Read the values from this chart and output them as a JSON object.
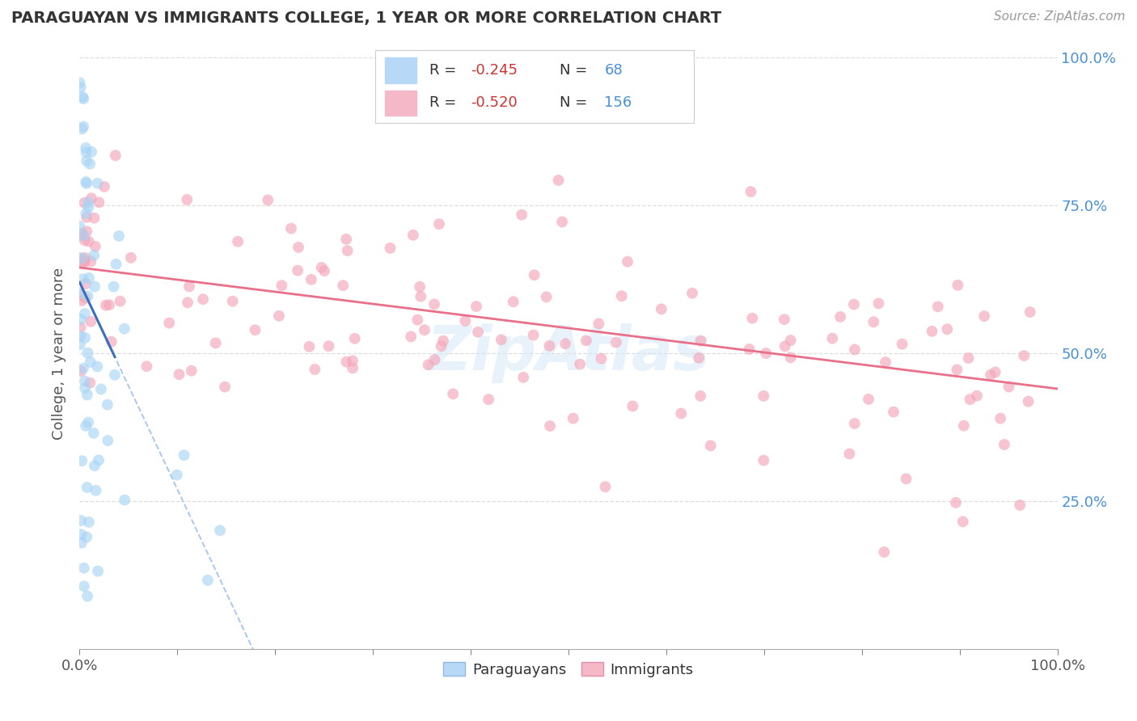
{
  "title": "PARAGUAYAN VS IMMIGRANTS COLLEGE, 1 YEAR OR MORE CORRELATION CHART",
  "source_text": "Source: ZipAtlas.com",
  "ylabel": "College, 1 year or more",
  "xlim": [
    0.0,
    1.0
  ],
  "ylim": [
    0.0,
    1.0
  ],
  "x_ticks": [
    0.0,
    0.1,
    0.2,
    0.3,
    0.4,
    0.5,
    0.6,
    0.7,
    0.8,
    0.9,
    1.0
  ],
  "x_tick_labels_show": [
    "0.0%",
    "",
    "",
    "",
    "",
    "",
    "",
    "",
    "",
    "",
    "100.0%"
  ],
  "y_ticks": [
    0.0,
    0.25,
    0.5,
    0.75,
    1.0
  ],
  "y_tick_labels_left": [
    "",
    "",
    "",
    "",
    ""
  ],
  "y_tick_labels_right": [
    "",
    "25.0%",
    "50.0%",
    "75.0%",
    "100.0%"
  ],
  "blue_color": "#a8d4f5",
  "pink_color": "#f4a7b9",
  "blue_line_color": "#3a6fbf",
  "pink_line_color": "#e8708a",
  "dashed_line_color": "#a8c8f0",
  "title_color": "#333333",
  "axis_color": "#aaaaaa",
  "tick_color": "#555555",
  "grid_color": "#dddddd",
  "legend_r1": "-0.245",
  "legend_n1": "68",
  "legend_r2": "-0.520",
  "legend_n2": "156",
  "legend_label1": "Paraguayans",
  "legend_label2": "Immigrants",
  "blue_R": -0.245,
  "blue_N": 68,
  "pink_R": -0.52,
  "pink_N": 156,
  "watermark_text": "ZipAtlas",
  "background_color": "#ffffff",
  "blue_intercept": 0.62,
  "blue_slope": -3.5,
  "pink_intercept": 0.645,
  "pink_slope": -0.205
}
